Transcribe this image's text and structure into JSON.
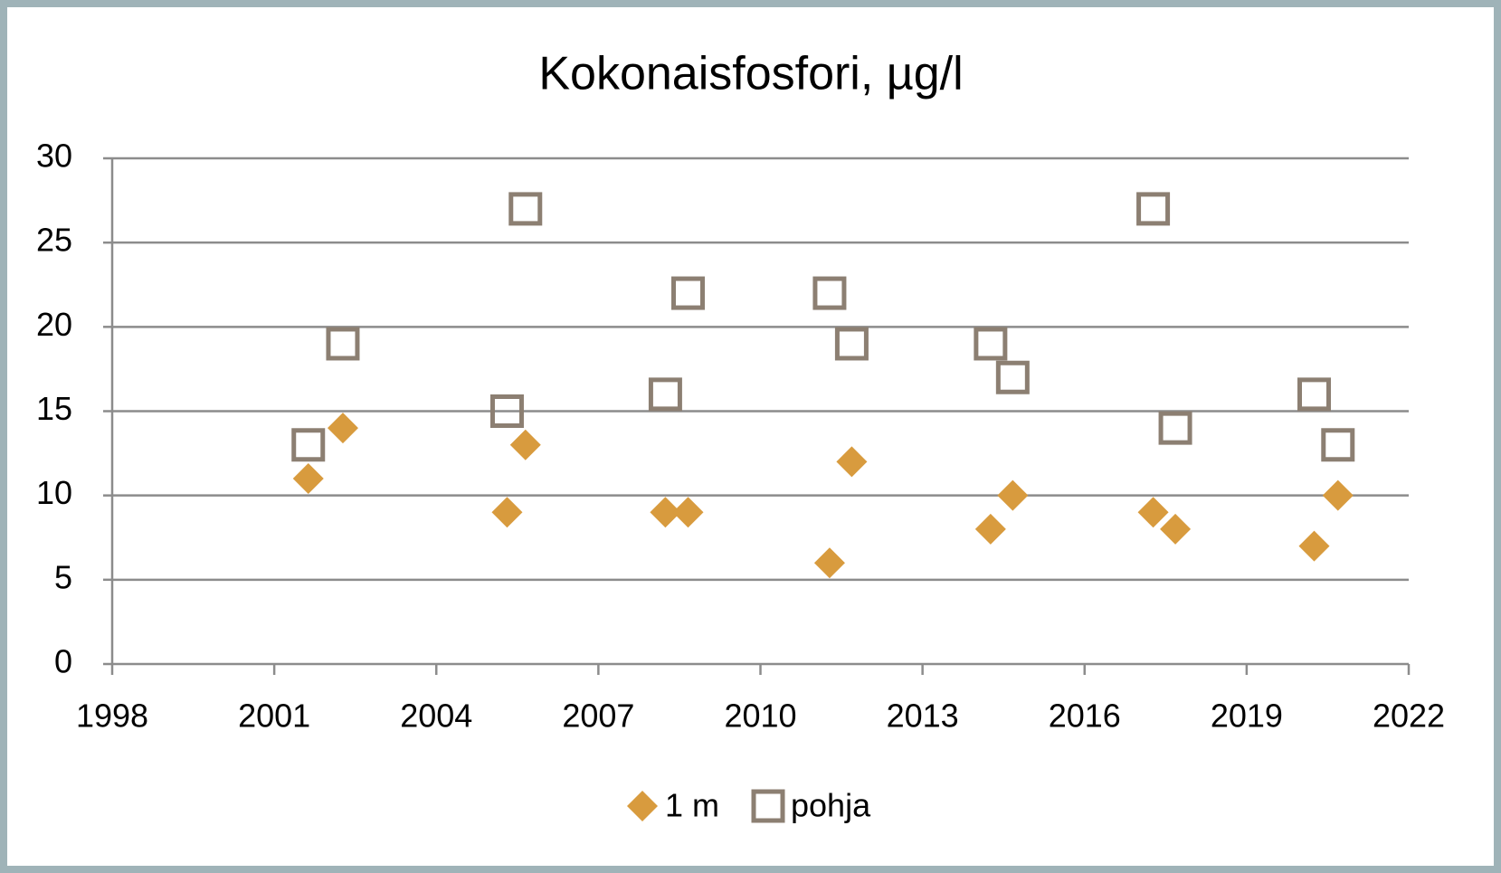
{
  "chart_data": {
    "type": "scatter",
    "title": "Kokonaisfosfori, µg/l",
    "xlim": [
      1998,
      2022
    ],
    "xticks": [
      1998,
      2001,
      2004,
      2007,
      2010,
      2013,
      2016,
      2019,
      2022
    ],
    "ylim": [
      0,
      30
    ],
    "yticks": [
      0,
      5,
      10,
      15,
      20,
      25,
      30
    ],
    "grid": true,
    "legend": "bottom",
    "series": [
      {
        "name": "1 m",
        "color": "#d89b3e",
        "marker": "diamond",
        "x": [
          2001.63,
          2002.27,
          2005.31,
          2005.65,
          2008.24,
          2008.66,
          2011.28,
          2011.69,
          2014.26,
          2014.67,
          2017.27,
          2017.68,
          2020.25,
          2020.69
        ],
        "values": [
          11,
          14,
          9,
          13,
          9,
          9,
          6,
          12,
          8,
          10,
          9,
          8,
          7,
          10
        ]
      },
      {
        "name": "pohja",
        "color": "#8c7f72",
        "marker": "square",
        "x": [
          2001.63,
          2002.27,
          2005.31,
          2005.65,
          2008.24,
          2008.66,
          2011.28,
          2011.69,
          2014.26,
          2014.67,
          2017.27,
          2017.68,
          2020.25,
          2020.69
        ],
        "values": [
          13,
          19,
          15,
          27,
          16,
          22,
          22,
          19,
          19,
          17,
          27,
          14,
          16,
          13
        ]
      }
    ]
  }
}
